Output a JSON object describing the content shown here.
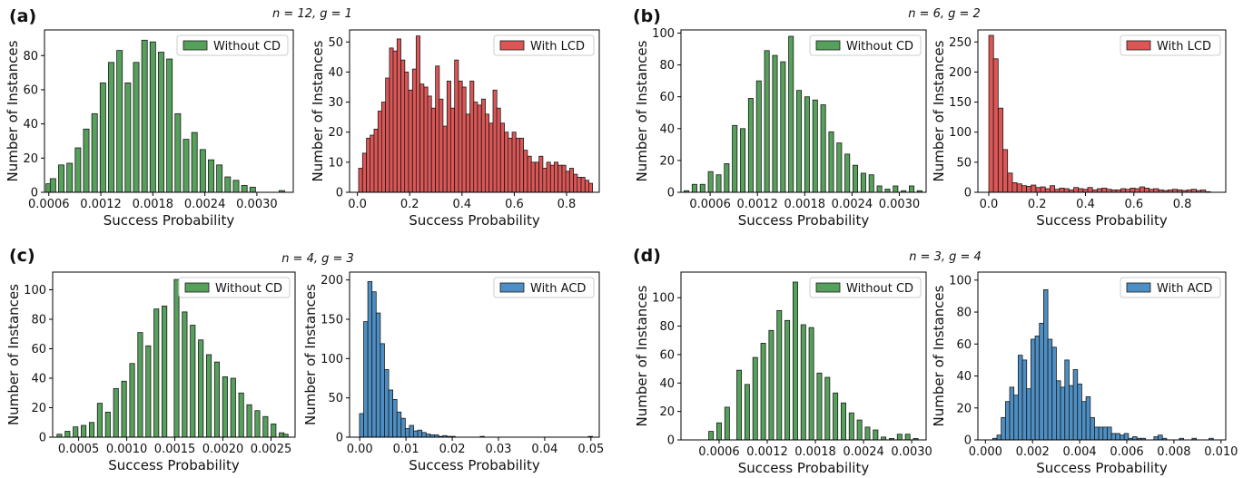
{
  "figure": {
    "panels": [
      {
        "letter": "(a)",
        "params": "n = 12, g = 1"
      },
      {
        "letter": "(b)",
        "params": "n = 6, g = 2"
      },
      {
        "letter": "(c)",
        "params": "n = 4, g = 3"
      },
      {
        "letter": "(d)",
        "params": "n = 3, g = 4"
      }
    ]
  },
  "colors": {
    "without_cd": "#55a05a",
    "with_lcd": "#dd5656",
    "with_acd": "#4d8fc4",
    "edge": "#1a1a1a"
  },
  "chart_data": [
    {
      "id": "a-left",
      "type": "bar",
      "panel": "(a)",
      "xlabel": "Success Probability",
      "ylabel": "Number of Instances",
      "legend": "Without CD",
      "legend_position": "top-right",
      "xlim": [
        0.00055,
        0.00342
      ],
      "ylim": [
        0,
        95
      ],
      "xticks": [
        0.0006,
        0.0012,
        0.0018,
        0.0024,
        0.003
      ],
      "xtick_labels": [
        "0.0006",
        "0.0012",
        "0.0018",
        "0.0024",
        "0.0030"
      ],
      "yticks": [
        0,
        20,
        40,
        60,
        80
      ],
      "bin_width": 6.4e-05,
      "x": [
        0.0006,
        0.000648,
        0.000696,
        0.000744,
        0.000792,
        0.00084,
        0.000888,
        0.000936,
        0.000984,
        0.001032,
        0.00108,
        0.001128,
        0.001176,
        0.001224,
        0.001272,
        0.00132,
        0.001368,
        0.001416,
        0.001464,
        0.001512,
        0.00156,
        0.001608,
        0.001656,
        0.001704,
        0.001752,
        0.0018,
        0.001848,
        0.001896,
        0.001944,
        0.001992,
        0.00204,
        0.002088,
        0.002136,
        0.002184,
        0.002232,
        0.00228,
        0.002328,
        0.002376,
        0.002424,
        0.002472,
        0.00252,
        0.002568,
        0.002616,
        0.002664,
        0.002712,
        0.00276,
        0.002808,
        0.002856,
        0.002904,
        0.002952,
        0.003,
        0.003048,
        0.003096,
        0.003144,
        0.003192,
        0.00324,
        0.003288
      ],
      "values": [
        5,
        8,
        0,
        16,
        0,
        17,
        0,
        26,
        0,
        37,
        0,
        46,
        0,
        64,
        0,
        76,
        0,
        83,
        0,
        64,
        0,
        76,
        0,
        89,
        0,
        88,
        0,
        82,
        0,
        78,
        0,
        46,
        0,
        31,
        0,
        35,
        0,
        25,
        0,
        19,
        0,
        16,
        0,
        9,
        0,
        7,
        0,
        4,
        0,
        3,
        0,
        0,
        0,
        0,
        0,
        0,
        1
      ]
    },
    {
      "id": "a-right",
      "type": "bar",
      "panel": "(a)",
      "xlabel": "Success Probability",
      "ylabel": "Number of Instances",
      "legend": "With LCD",
      "legend_position": "top-right",
      "xlim": [
        -0.03,
        0.925
      ],
      "ylim": [
        0,
        54
      ],
      "xticks": [
        0,
        0.2,
        0.4,
        0.6,
        0.8
      ],
      "xtick_labels": [
        "0.0",
        "0.2",
        "0.4",
        "0.6",
        "0.8"
      ],
      "yticks": [
        0,
        10,
        20,
        30,
        40,
        50
      ],
      "bin_width": 0.0146,
      "x": [
        0.012,
        0.027,
        0.042,
        0.056,
        0.071,
        0.086,
        0.1,
        0.115,
        0.13,
        0.144,
        0.159,
        0.174,
        0.188,
        0.203,
        0.218,
        0.232,
        0.247,
        0.262,
        0.276,
        0.291,
        0.306,
        0.32,
        0.335,
        0.35,
        0.364,
        0.379,
        0.394,
        0.408,
        0.423,
        0.438,
        0.452,
        0.467,
        0.482,
        0.496,
        0.511,
        0.526,
        0.54,
        0.555,
        0.57,
        0.584,
        0.599,
        0.614,
        0.628,
        0.643,
        0.658,
        0.672,
        0.687,
        0.702,
        0.716,
        0.731,
        0.746,
        0.76,
        0.775,
        0.79,
        0.804,
        0.819,
        0.834,
        0.848,
        0.863,
        0.878,
        0.892
      ],
      "values": [
        8,
        13,
        18,
        19,
        21,
        27,
        30,
        38,
        48,
        47,
        51,
        44,
        40,
        34,
        41,
        52,
        36,
        35,
        32,
        28,
        42,
        31,
        22,
        37,
        28,
        44,
        37,
        35,
        26,
        37,
        30,
        29,
        31,
        26,
        23,
        34,
        28,
        23,
        20,
        18,
        20,
        18,
        18,
        14,
        12,
        10,
        10,
        12,
        8,
        10,
        9,
        10,
        9,
        9,
        7,
        8,
        6,
        5,
        5,
        4,
        3
      ]
    },
    {
      "id": "b-left",
      "type": "bar",
      "panel": "(b)",
      "xlabel": "Success Probability",
      "ylabel": "Number of Instances",
      "legend": "Without CD",
      "legend_position": "top-right",
      "xlim": [
        0.00023,
        0.00334
      ],
      "ylim": [
        0,
        102
      ],
      "xticks": [
        0.0006,
        0.0012,
        0.0018,
        0.0024,
        0.003
      ],
      "xtick_labels": [
        "0.0006",
        "0.0012",
        "0.0018",
        "0.0024",
        "0.0030"
      ],
      "yticks": [
        0,
        20,
        40,
        60,
        80,
        100
      ],
      "bin_width": 6e-05,
      "x": [
        0.0003,
        0.000351,
        0.000402,
        0.000453,
        0.000504,
        0.000555,
        0.000606,
        0.000657,
        0.000708,
        0.000759,
        0.00081,
        0.000861,
        0.000912,
        0.000963,
        0.001014,
        0.001065,
        0.001116,
        0.001167,
        0.001218,
        0.001269,
        0.00132,
        0.001371,
        0.001422,
        0.001473,
        0.001524,
        0.001575,
        0.001626,
        0.001677,
        0.001728,
        0.001779,
        0.00183,
        0.001881,
        0.001932,
        0.001983,
        0.002034,
        0.002085,
        0.002136,
        0.002187,
        0.002238,
        0.002289,
        0.00234,
        0.002391,
        0.002442,
        0.002493,
        0.002544,
        0.002595,
        0.002646,
        0.002697,
        0.002748,
        0.002799,
        0.00285,
        0.002901,
        0.002952,
        0.003003,
        0.003054,
        0.003105,
        0.003156,
        0.003207,
        0.003258
      ],
      "values": [
        1,
        0,
        5,
        0,
        5,
        0,
        13,
        0,
        11,
        0,
        18,
        0,
        42,
        0,
        40,
        0,
        59,
        0,
        70,
        0,
        89,
        0,
        86,
        0,
        82,
        0,
        98,
        0,
        64,
        0,
        60,
        0,
        58,
        0,
        55,
        0,
        38,
        0,
        31,
        0,
        24,
        0,
        17,
        0,
        12,
        0,
        11,
        0,
        4,
        0,
        2,
        0,
        4,
        0,
        1,
        0,
        4,
        0,
        1
      ]
    },
    {
      "id": "b-right",
      "type": "bar",
      "panel": "(b)",
      "xlabel": "Success Probability",
      "ylabel": "Number of Instances",
      "legend": "With LCD",
      "legend_position": "top-right",
      "xlim": [
        -0.045,
        0.98
      ],
      "ylim": [
        0,
        270
      ],
      "xticks": [
        0,
        0.2,
        0.4,
        0.6,
        0.8
      ],
      "xtick_labels": [
        "0.0",
        "0.2",
        "0.4",
        "0.6",
        "0.8"
      ],
      "yticks": [
        0,
        50,
        100,
        150,
        200,
        250
      ],
      "bin_width": 0.0195,
      "x": [
        0.01,
        0.029,
        0.049,
        0.068,
        0.088,
        0.107,
        0.127,
        0.146,
        0.166,
        0.185,
        0.205,
        0.224,
        0.244,
        0.263,
        0.283,
        0.302,
        0.322,
        0.341,
        0.361,
        0.38,
        0.4,
        0.419,
        0.439,
        0.458,
        0.478,
        0.497,
        0.517,
        0.536,
        0.556,
        0.575,
        0.595,
        0.614,
        0.634,
        0.653,
        0.673,
        0.692,
        0.712,
        0.731,
        0.751,
        0.77,
        0.79,
        0.809,
        0.829,
        0.848,
        0.868,
        0.887,
        0.907,
        0.926
      ],
      "values": [
        261,
        222,
        140,
        71,
        32,
        16,
        14,
        11,
        10,
        12,
        8,
        9,
        6,
        11,
        5,
        7,
        6,
        4,
        8,
        6,
        5,
        8,
        4,
        6,
        7,
        5,
        4,
        4,
        6,
        5,
        7,
        6,
        9,
        7,
        5,
        6,
        4,
        3,
        4,
        5,
        4,
        3,
        4,
        5,
        3,
        4,
        1,
        0
      ]
    },
    {
      "id": "c-left",
      "type": "bar",
      "panel": "(c)",
      "xlabel": "Success Probability",
      "ylabel": "Number of Instances",
      "legend": "Without CD",
      "legend_position": "top-right",
      "xlim": [
        0.00023,
        0.00275
      ],
      "ylim": [
        0,
        112
      ],
      "xticks": [
        0.0005,
        0.001,
        0.0015,
        0.002,
        0.0025
      ],
      "xtick_labels": [
        "0.0005",
        "0.0010",
        "0.0015",
        "0.0020",
        "0.0025"
      ],
      "yticks": [
        0,
        20,
        40,
        60,
        80,
        100
      ],
      "bin_width": 5e-05,
      "x": [
        0.0003,
        0.000342,
        0.000384,
        0.000426,
        0.000468,
        0.00051,
        0.000552,
        0.000594,
        0.000636,
        0.000678,
        0.00072,
        0.000762,
        0.000804,
        0.000846,
        0.000888,
        0.00093,
        0.000972,
        0.001014,
        0.001056,
        0.001098,
        0.00114,
        0.001182,
        0.001224,
        0.001266,
        0.001308,
        0.00135,
        0.001392,
        0.001434,
        0.001476,
        0.001518,
        0.00156,
        0.001602,
        0.001644,
        0.001686,
        0.001728,
        0.00177,
        0.001812,
        0.001854,
        0.001896,
        0.001938,
        0.00198,
        0.002022,
        0.002064,
        0.002106,
        0.002148,
        0.00219,
        0.002232,
        0.002274,
        0.002316,
        0.002358,
        0.0024,
        0.002442,
        0.002484,
        0.002526,
        0.002568,
        0.00261,
        0.002652
      ],
      "values": [
        2,
        0,
        4,
        0,
        7,
        0,
        8,
        0,
        10,
        0,
        23,
        0,
        17,
        0,
        33,
        0,
        38,
        0,
        50,
        0,
        71,
        0,
        62,
        0,
        87,
        0,
        89,
        0,
        0,
        107,
        0,
        85,
        0,
        76,
        0,
        66,
        0,
        56,
        0,
        51,
        0,
        41,
        0,
        40,
        0,
        30,
        0,
        22,
        0,
        18,
        0,
        14,
        0,
        9,
        0,
        3,
        2
      ]
    },
    {
      "id": "c-right",
      "type": "bar",
      "panel": "(c)",
      "xlabel": "Success Probability",
      "ylabel": "Number of Instances",
      "legend": "With ACD",
      "legend_position": "top-right",
      "xlim": [
        -0.0022,
        0.0518
      ],
      "ylim": [
        0,
        210
      ],
      "xticks": [
        0,
        0.01,
        0.02,
        0.03,
        0.04,
        0.05
      ],
      "xtick_labels": [
        "0.00",
        "0.01",
        "0.02",
        "0.03",
        "0.04",
        "0.05"
      ],
      "yticks": [
        0,
        50,
        100,
        150,
        200
      ],
      "bin_width": 0.0009,
      "x": [
        0.0004,
        0.0013,
        0.0022,
        0.0031,
        0.004,
        0.0049,
        0.0058,
        0.0067,
        0.0076,
        0.0085,
        0.0094,
        0.0103,
        0.0112,
        0.0121,
        0.013,
        0.0139,
        0.0148,
        0.0157,
        0.0166,
        0.0175,
        0.0184,
        0.0193,
        0.0202,
        0.0211,
        0.022,
        0.0229,
        0.0238,
        0.0247,
        0.0256,
        0.0265,
        0.0274,
        0.0283,
        0.0292,
        0.0301,
        0.031,
        0.0319,
        0.0328,
        0.0337,
        0.0346,
        0.0355,
        0.0364,
        0.0373,
        0.0382,
        0.0391,
        0.04,
        0.0409,
        0.0418,
        0.0427,
        0.0436,
        0.0445,
        0.0454,
        0.0463,
        0.0472,
        0.0481,
        0.049,
        0.0499
      ],
      "values": [
        30,
        147,
        198,
        185,
        158,
        119,
        86,
        60,
        48,
        32,
        24,
        11,
        15,
        8,
        9,
        6,
        4,
        3,
        3,
        1,
        2,
        1,
        1,
        0,
        0,
        0,
        0,
        0,
        0,
        1,
        0,
        0,
        0,
        0,
        0,
        0,
        0,
        0,
        0,
        0,
        0,
        0,
        0,
        0,
        0,
        0,
        0,
        0,
        0,
        0,
        0,
        0,
        0,
        0,
        0,
        1
      ]
    },
    {
      "id": "d-left",
      "type": "bar",
      "panel": "(d)",
      "xlabel": "Success Probability",
      "ylabel": "Number of Instances",
      "legend": "Without CD",
      "legend_position": "top-right",
      "xlim": [
        0.000125,
        0.00318
      ],
      "ylim": [
        0,
        118
      ],
      "xticks": [
        0.0006,
        0.0012,
        0.0018,
        0.0024,
        0.003
      ],
      "xtick_labels": [
        "0.0006",
        "0.0012",
        "0.0018",
        "0.0024",
        "0.0030"
      ],
      "yticks": [
        0,
        20,
        40,
        60,
        80,
        100
      ],
      "bin_width": 5.8e-05,
      "x": [
        0.0003,
        0.00035,
        0.0004,
        0.00045,
        0.0005,
        0.00055,
        0.0006,
        0.00065,
        0.0007,
        0.00075,
        0.0008,
        0.00085,
        0.0009,
        0.00095,
        0.001,
        0.00105,
        0.0011,
        0.00115,
        0.0012,
        0.00125,
        0.0013,
        0.00135,
        0.0014,
        0.00145,
        0.0015,
        0.00155,
        0.0016,
        0.00165,
        0.0017,
        0.00175,
        0.0018,
        0.00185,
        0.0019,
        0.00195,
        0.002,
        0.00205,
        0.0021,
        0.00215,
        0.0022,
        0.00225,
        0.0023,
        0.00235,
        0.0024,
        0.00245,
        0.0025,
        0.00255,
        0.0026,
        0.00265,
        0.0027,
        0.00275,
        0.0028,
        0.00285,
        0.0029,
        0.00295,
        0.003,
        0.00305
      ],
      "values": [
        0,
        0,
        0,
        0,
        6,
        0,
        12,
        0,
        23,
        0,
        0,
        49,
        0,
        39,
        0,
        58,
        0,
        68,
        0,
        77,
        0,
        91,
        0,
        84,
        0,
        111,
        0,
        81,
        0,
        79,
        0,
        47,
        0,
        44,
        0,
        33,
        0,
        26,
        0,
        19,
        0,
        14,
        0,
        9,
        0,
        7,
        0,
        2,
        0,
        1,
        0,
        4,
        0,
        4,
        0,
        1
      ]
    },
    {
      "id": "d-right",
      "type": "bar",
      "panel": "(d)",
      "xlabel": "Success Probability",
      "ylabel": "Number of Instances",
      "legend": "With ACD",
      "legend_position": "top-right",
      "xlim": [
        -0.00032,
        0.0102
      ],
      "ylim": [
        0,
        105
      ],
      "xticks": [
        0,
        0.002,
        0.004,
        0.006,
        0.008,
        0.01
      ],
      "xtick_labels": [
        "0.000",
        "0.002",
        "0.004",
        "0.006",
        "0.008",
        "0.010"
      ],
      "yticks": [
        0,
        20,
        40,
        60,
        80,
        100
      ],
      "bin_width": 0.00018,
      "x": [
        0.0004,
        0.00058,
        0.00076,
        0.00094,
        0.00112,
        0.0013,
        0.00148,
        0.00166,
        0.00184,
        0.00202,
        0.0022,
        0.00238,
        0.00256,
        0.00274,
        0.00292,
        0.0031,
        0.00328,
        0.00346,
        0.00364,
        0.00382,
        0.004,
        0.00418,
        0.00436,
        0.00454,
        0.00472,
        0.0049,
        0.00508,
        0.00526,
        0.00544,
        0.00562,
        0.0058,
        0.00598,
        0.00616,
        0.00634,
        0.00652,
        0.0067,
        0.00688,
        0.00706,
        0.00724,
        0.00742,
        0.0076,
        0.00778,
        0.00796,
        0.00814,
        0.00832,
        0.0085,
        0.00868,
        0.00886,
        0.00904,
        0.00922,
        0.0094,
        0.00958
      ],
      "values": [
        1,
        3,
        14,
        24,
        33,
        28,
        53,
        50,
        32,
        63,
        65,
        73,
        94,
        63,
        58,
        37,
        33,
        50,
        34,
        44,
        35,
        24,
        27,
        14,
        8,
        8,
        8,
        8,
        4,
        4,
        3,
        4,
        1,
        2,
        1,
        1,
        0,
        0,
        2,
        3,
        1,
        0,
        0,
        0,
        1,
        0,
        0,
        1,
        0,
        0,
        0,
        1
      ]
    }
  ]
}
